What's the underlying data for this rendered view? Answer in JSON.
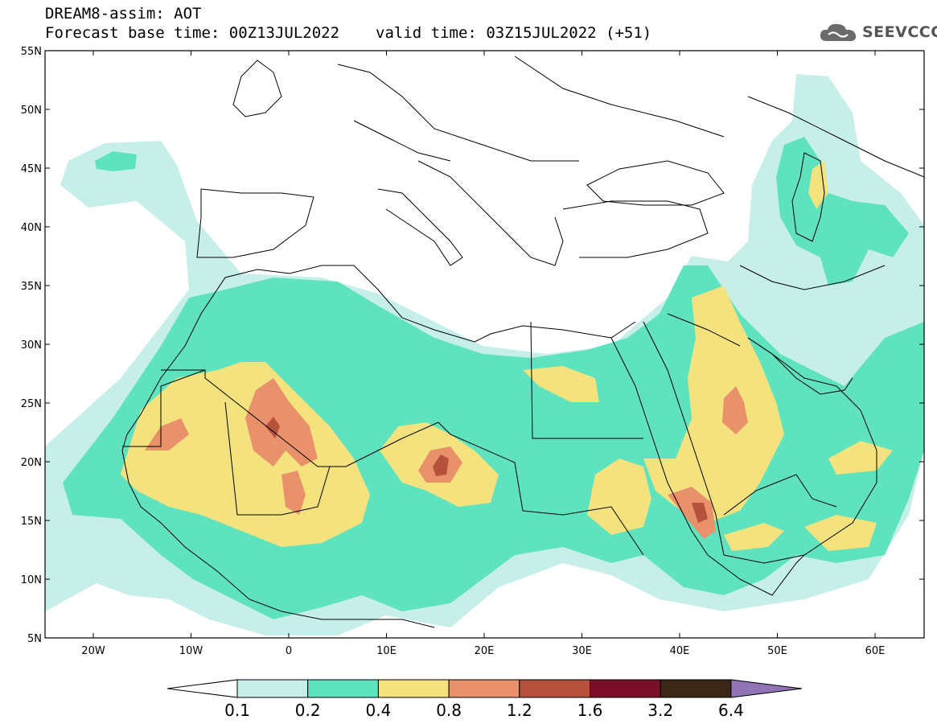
{
  "header": {
    "title": "DREAM8-assim: AOT",
    "base_time": "Forecast base time: 00Z13JUL2022",
    "valid_time": "valid time: 03Z15JUL2022 (+51)"
  },
  "logo": {
    "text": "SEEVCCC",
    "icon": "cloud-icon"
  },
  "map": {
    "lat_labels": [
      "55N",
      "50N",
      "45N",
      "40N",
      "35N",
      "30N",
      "25N",
      "20N",
      "15N",
      "10N",
      "5N"
    ],
    "lon_labels": [
      "20W",
      "10W",
      "0",
      "10E",
      "20E",
      "30E",
      "40E",
      "50E",
      "60E"
    ]
  },
  "colorbar": {
    "colors": [
      "#ffffff",
      "#c7efe9",
      "#5fe3bf",
      "#f3e27d",
      "#e8916a",
      "#b5513c",
      "#7a1028",
      "#3b2618",
      "#9074b6"
    ],
    "labels": [
      "0.1",
      "0.2",
      "0.4",
      "0.8",
      "1.2",
      "1.6",
      "3.2",
      "6.4"
    ]
  }
}
